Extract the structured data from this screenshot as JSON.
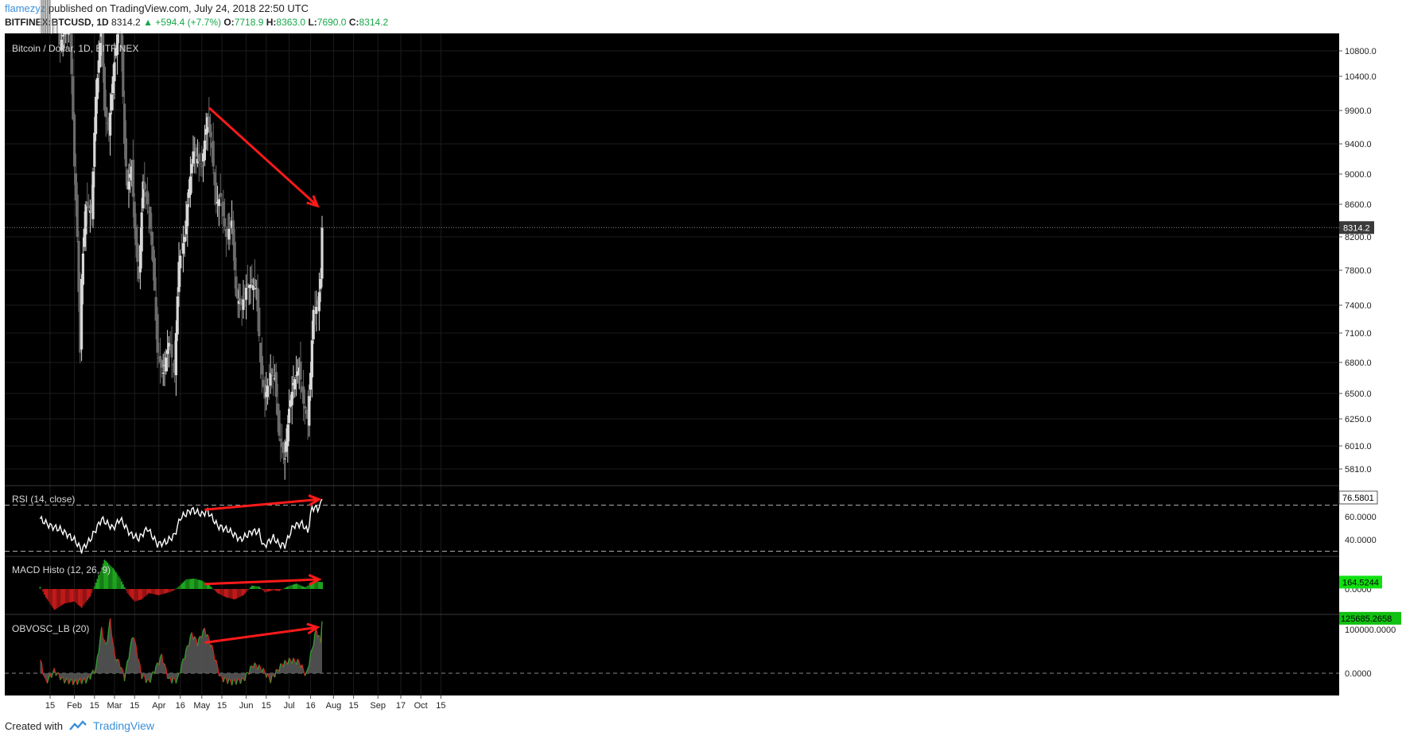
{
  "header": {
    "author": "flamezyz",
    "published": "published on TradingView.com, July 24, 2018 22:50 UTC",
    "symbol": "BITFINEX:BTCUSD, 1D",
    "last": "8314.2",
    "change": "▲ +594.4 (+7.7%)",
    "o_label": "O:",
    "o": "7718.9",
    "h_label": "H:",
    "h": "8363.0",
    "l_label": "L:",
    "l": "7690.0",
    "c_label": "C:",
    "c": "8314.2"
  },
  "footer": {
    "created_with": "Created with",
    "brand": "TradingView"
  },
  "colors": {
    "background": "#000000",
    "candle_up": "#d8d8d8",
    "candle_down": "#6b6b6b",
    "arrow": "#ff1a1a",
    "macd_pos": "#1fa71f",
    "macd_neg": "#c41a1a",
    "obv_line_up": "#2e9d2e",
    "obv_line_down": "#d02020",
    "last_badge": "#3a3a3a"
  },
  "chart_data": [
    {
      "type": "candlestick",
      "title": "Bitcoin / Dollar, 1D, BITFINEX",
      "x_labels": [
        "15",
        "Feb",
        "15",
        "Mar",
        "15",
        "Apr",
        "16",
        "May",
        "15",
        "Jun",
        "15",
        "Jul",
        "16",
        "Aug",
        "15",
        "Sep",
        "17",
        "Oct",
        "15"
      ],
      "y_ticks": [
        "10800.0",
        "10400.0",
        "9900.0",
        "9400.0",
        "9000.0",
        "8600.0",
        "8200.0",
        "7800.0",
        "7400.0",
        "7100.0",
        "6800.0",
        "6500.0",
        "6250.0",
        "6010.0",
        "5810.0"
      ],
      "last_price": "8314.2",
      "close_path": [
        [
          "2018-01-08",
          15300
        ],
        [
          "2018-01-12",
          13800
        ],
        [
          "2018-01-16",
          11400
        ],
        [
          "2018-01-19",
          11600
        ],
        [
          "2018-01-22",
          10900
        ],
        [
          "2018-01-26",
          11200
        ],
        [
          "2018-01-29",
          11100
        ],
        [
          "2018-02-01",
          9100
        ],
        [
          "2018-02-03",
          8200
        ],
        [
          "2018-02-05",
          6900
        ],
        [
          "2018-02-06",
          7700
        ],
        [
          "2018-02-09",
          8600
        ],
        [
          "2018-02-13",
          8500
        ],
        [
          "2018-02-16",
          10100
        ],
        [
          "2018-02-20",
          11200
        ],
        [
          "2018-02-22",
          9900
        ],
        [
          "2018-02-25",
          9600
        ],
        [
          "2018-02-28",
          10400
        ],
        [
          "2018-03-05",
          11500
        ],
        [
          "2018-03-08",
          9400
        ],
        [
          "2018-03-10",
          8800
        ],
        [
          "2018-03-13",
          9100
        ],
        [
          "2018-03-15",
          8300
        ],
        [
          "2018-03-18",
          7700
        ],
        [
          "2018-03-21",
          8900
        ],
        [
          "2018-03-25",
          8500
        ],
        [
          "2018-03-28",
          7900
        ],
        [
          "2018-03-31",
          6900
        ],
        [
          "2018-04-04",
          6700
        ],
        [
          "2018-04-08",
          7000
        ],
        [
          "2018-04-12",
          6700
        ],
        [
          "2018-04-15",
          7900
        ],
        [
          "2018-04-19",
          8200
        ],
        [
          "2018-04-22",
          8800
        ],
        [
          "2018-04-25",
          9300
        ],
        [
          "2018-04-28",
          9200
        ],
        [
          "2018-05-01",
          9100
        ],
        [
          "2018-05-05",
          9800
        ],
        [
          "2018-05-08",
          9350
        ],
        [
          "2018-05-11",
          8600
        ],
        [
          "2018-05-14",
          8700
        ],
        [
          "2018-05-18",
          8200
        ],
        [
          "2018-05-22",
          8400
        ],
        [
          "2018-05-25",
          7500
        ],
        [
          "2018-05-29",
          7400
        ],
        [
          "2018-06-01",
          7600
        ],
        [
          "2018-06-05",
          7650
        ],
        [
          "2018-06-08",
          7600
        ],
        [
          "2018-06-11",
          6800
        ],
        [
          "2018-06-14",
          6450
        ],
        [
          "2018-06-18",
          6700
        ],
        [
          "2018-06-21",
          6650
        ],
        [
          "2018-06-24",
          6100
        ],
        [
          "2018-06-28",
          5900
        ],
        [
          "2018-07-01",
          6350
        ],
        [
          "2018-07-04",
          6600
        ],
        [
          "2018-07-08",
          6750
        ],
        [
          "2018-07-11",
          6400
        ],
        [
          "2018-07-14",
          6250
        ],
        [
          "2018-07-16",
          6700
        ],
        [
          "2018-07-18",
          7350
        ],
        [
          "2018-07-21",
          7400
        ],
        [
          "2018-07-23",
          7700
        ],
        [
          "2018-07-24",
          8314.2
        ]
      ],
      "annotation": "arrow from May high 9940 to 8550"
    },
    {
      "type": "line",
      "title": "RSI (14, close)",
      "y_ticks": [
        "60.0000",
        "40.0000"
      ],
      "value_label": "76.5801",
      "bands": [
        70,
        30
      ],
      "value_path": [
        [
          "2018-01-08",
          58
        ],
        [
          "2018-01-15",
          52
        ],
        [
          "2018-01-22",
          49
        ],
        [
          "2018-02-01",
          40
        ],
        [
          "2018-02-06",
          31
        ],
        [
          "2018-02-12",
          40
        ],
        [
          "2018-02-20",
          58
        ],
        [
          "2018-02-28",
          50
        ],
        [
          "2018-03-05",
          58
        ],
        [
          "2018-03-12",
          45
        ],
        [
          "2018-03-18",
          41
        ],
        [
          "2018-03-24",
          50
        ],
        [
          "2018-03-31",
          36
        ],
        [
          "2018-04-06",
          38
        ],
        [
          "2018-04-12",
          44
        ],
        [
          "2018-04-16",
          59
        ],
        [
          "2018-04-24",
          66
        ],
        [
          "2018-05-01",
          62
        ],
        [
          "2018-05-05",
          65
        ],
        [
          "2018-05-12",
          52
        ],
        [
          "2018-05-20",
          48
        ],
        [
          "2018-05-28",
          40
        ],
        [
          "2018-06-05",
          47
        ],
        [
          "2018-06-10",
          47
        ],
        [
          "2018-06-13",
          34
        ],
        [
          "2018-06-20",
          42
        ],
        [
          "2018-06-24",
          36
        ],
        [
          "2018-06-28",
          35
        ],
        [
          "2018-07-04",
          52
        ],
        [
          "2018-07-10",
          54
        ],
        [
          "2018-07-14",
          47
        ],
        [
          "2018-07-17",
          68
        ],
        [
          "2018-07-21",
          67
        ],
        [
          "2018-07-23",
          70
        ],
        [
          "2018-07-24",
          76.58
        ]
      ]
    },
    {
      "type": "histogram",
      "title": "MACD Histo (12, 26, 9)",
      "y_ticks": [
        "0.0000"
      ],
      "value_label": "164.5244",
      "value_path": [
        [
          "2018-01-08",
          60
        ],
        [
          "2018-01-12",
          -200
        ],
        [
          "2018-01-18",
          -500
        ],
        [
          "2018-01-25",
          -350
        ],
        [
          "2018-02-01",
          -300
        ],
        [
          "2018-02-06",
          -450
        ],
        [
          "2018-02-12",
          -180
        ],
        [
          "2018-02-16",
          150
        ],
        [
          "2018-02-22",
          700
        ],
        [
          "2018-02-28",
          500
        ],
        [
          "2018-03-05",
          250
        ],
        [
          "2018-03-10",
          -100
        ],
        [
          "2018-03-15",
          -300
        ],
        [
          "2018-03-20",
          -250
        ],
        [
          "2018-03-25",
          -100
        ],
        [
          "2018-04-01",
          -150
        ],
        [
          "2018-04-06",
          -100
        ],
        [
          "2018-04-10",
          -60
        ],
        [
          "2018-04-14",
          30
        ],
        [
          "2018-04-20",
          230
        ],
        [
          "2018-04-26",
          250
        ],
        [
          "2018-05-01",
          200
        ],
        [
          "2018-05-06",
          100
        ],
        [
          "2018-05-12",
          -100
        ],
        [
          "2018-05-18",
          -200
        ],
        [
          "2018-05-24",
          -250
        ],
        [
          "2018-05-30",
          -150
        ],
        [
          "2018-06-05",
          80
        ],
        [
          "2018-06-10",
          60
        ],
        [
          "2018-06-14",
          -80
        ],
        [
          "2018-06-20",
          -30
        ],
        [
          "2018-06-24",
          -50
        ],
        [
          "2018-06-30",
          60
        ],
        [
          "2018-07-06",
          130
        ],
        [
          "2018-07-12",
          40
        ],
        [
          "2018-07-16",
          120
        ],
        [
          "2018-07-20",
          180
        ],
        [
          "2018-07-24",
          164.52
        ]
      ]
    },
    {
      "type": "area",
      "title": "OBVOSC_LB (20)",
      "y_ticks": [
        "100000.0000",
        "0.0000"
      ],
      "value_label": "125685.2658",
      "value_path": [
        [
          "2018-01-08",
          30000
        ],
        [
          "2018-01-12",
          -20000
        ],
        [
          "2018-01-18",
          5000
        ],
        [
          "2018-01-24",
          -15000
        ],
        [
          "2018-02-01",
          -20000
        ],
        [
          "2018-02-10",
          -15000
        ],
        [
          "2018-02-16",
          10000
        ],
        [
          "2018-02-20",
          100000
        ],
        [
          "2018-02-23",
          60000
        ],
        [
          "2018-02-26",
          120000
        ],
        [
          "2018-03-01",
          40000
        ],
        [
          "2018-03-05",
          20000
        ],
        [
          "2018-03-08",
          -10000
        ],
        [
          "2018-03-14",
          90000
        ],
        [
          "2018-03-20",
          -5000
        ],
        [
          "2018-03-25",
          -20000
        ],
        [
          "2018-04-03",
          40000
        ],
        [
          "2018-04-08",
          -15000
        ],
        [
          "2018-04-14",
          -15000
        ],
        [
          "2018-04-18",
          30000
        ],
        [
          "2018-04-24",
          90000
        ],
        [
          "2018-04-28",
          70000
        ],
        [
          "2018-05-03",
          100000
        ],
        [
          "2018-05-08",
          60000
        ],
        [
          "2018-05-14",
          -10000
        ],
        [
          "2018-05-22",
          -20000
        ],
        [
          "2018-05-30",
          -15000
        ],
        [
          "2018-06-06",
          20000
        ],
        [
          "2018-06-12",
          10000
        ],
        [
          "2018-06-18",
          -15000
        ],
        [
          "2018-06-26",
          20000
        ],
        [
          "2018-07-02",
          30000
        ],
        [
          "2018-07-08",
          25000
        ],
        [
          "2018-07-13",
          -5000
        ],
        [
          "2018-07-16",
          40000
        ],
        [
          "2018-07-20",
          100000
        ],
        [
          "2018-07-23",
          70000
        ],
        [
          "2018-07-24",
          125685.27
        ]
      ]
    }
  ]
}
